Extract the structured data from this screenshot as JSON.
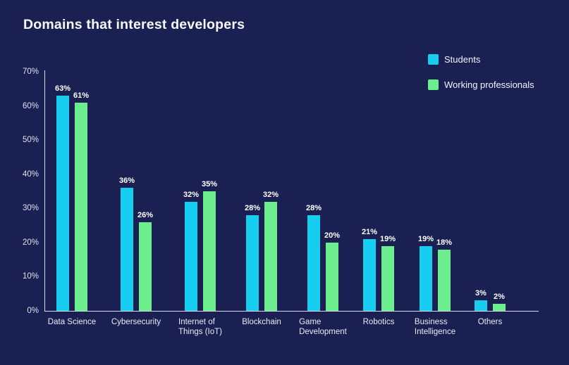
{
  "title": "Domains that interest developers",
  "legend": [
    {
      "label": "Students",
      "color": "#17cdf0"
    },
    {
      "label": "Working professionals",
      "color": "#6dee8e"
    }
  ],
  "colors": {
    "background": "#1a2152",
    "axis": "#eef1fa",
    "text": "#ffffff",
    "students": "#17cdf0",
    "working_professionals": "#6dee8e"
  },
  "chart_data": {
    "type": "bar",
    "title": "Domains that interest developers",
    "categories": [
      "Data Science",
      "Cybersecurity",
      "Internet of Things (IoT)",
      "Blockchain",
      "Game Development",
      "Robotics",
      "Business Intelligence",
      "Others"
    ],
    "category_lines": [
      [
        "Data Science"
      ],
      [
        "Cybersecurity"
      ],
      [
        "Internet of",
        "Things (IoT)"
      ],
      [
        "Blockchain"
      ],
      [
        "Game",
        "Development"
      ],
      [
        "Robotics"
      ],
      [
        "Business",
        "Intelligence"
      ],
      [
        "Others"
      ]
    ],
    "series": [
      {
        "name": "Students",
        "color": "#17cdf0",
        "values": [
          63,
          36,
          32,
          28,
          28,
          21,
          19,
          3
        ],
        "labels": [
          "63%",
          "36%",
          "32%",
          "28%",
          "28%",
          "21%",
          "19%",
          "3%"
        ]
      },
      {
        "name": "Working professionals",
        "color": "#6dee8e",
        "values": [
          61,
          26,
          35,
          32,
          20,
          19,
          18,
          2
        ],
        "labels": [
          "61%",
          "26%",
          "35%",
          "32%",
          "20%",
          "19%",
          "18%",
          "2%"
        ]
      }
    ],
    "xlabel": "",
    "ylabel": "",
    "ylim": [
      0,
      70
    ],
    "yticks": [
      "0%",
      "10%",
      "20%",
      "30%",
      "40%",
      "50%",
      "60%",
      "70%"
    ],
    "grid": false,
    "legend_position": "top-right"
  }
}
